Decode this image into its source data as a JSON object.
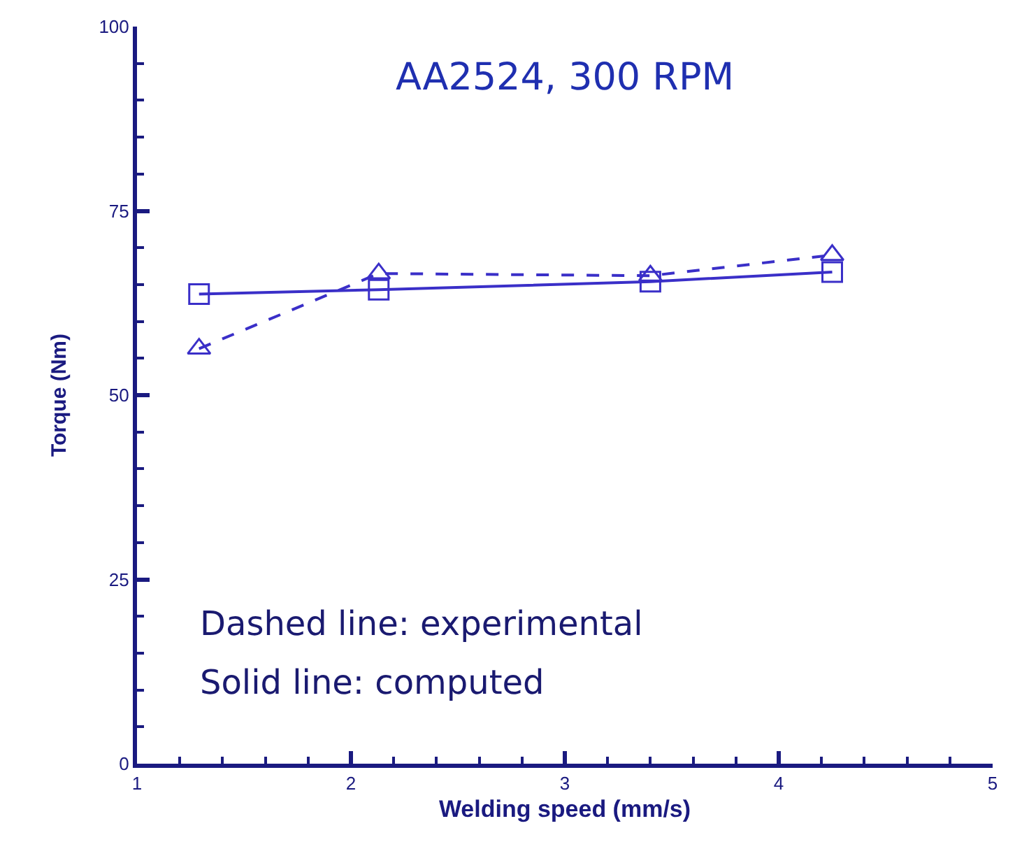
{
  "chart_data": {
    "type": "line",
    "xlabel": "Welding speed (mm/s)",
    "ylabel": "Torque (Nm)",
    "x": [
      1.29,
      2.13,
      3.4,
      4.25
    ],
    "series": [
      {
        "color": "#3a2fc8",
        "values": [
          63.7,
          64.3,
          65.4,
          66.7
        ],
        "marker": "square",
        "line_style": "solid"
      },
      {
        "color": "#3a2fc8",
        "values": [
          56.3,
          66.5,
          66.2,
          69.0
        ],
        "marker": "triangle",
        "line_style": "dashed"
      }
    ],
    "xlim": [
      1,
      5
    ],
    "ylim": [
      0,
      100
    ],
    "xticks": [
      1,
      2,
      3,
      4,
      5
    ],
    "yticks": [
      0,
      25,
      50,
      75,
      100
    ],
    "annotations": [
      "AA2524, 300 RPM",
      "Dashed line: experimental",
      "Solid line: computed"
    ]
  }
}
